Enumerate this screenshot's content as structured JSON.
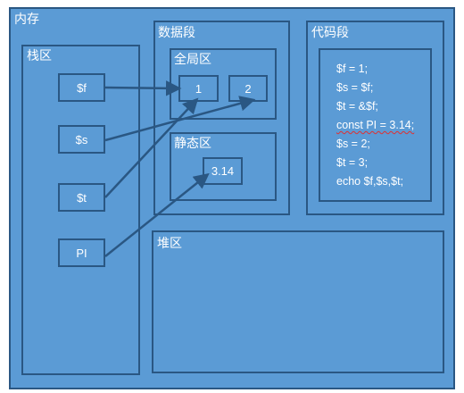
{
  "memory": {
    "title": "内存",
    "stack": {
      "title": "栈区",
      "vars": [
        "$f",
        "$s",
        "$t",
        "PI"
      ]
    },
    "data_segment": {
      "title": "数据段",
      "global": {
        "title": "全局区",
        "values": [
          "1",
          "2"
        ]
      },
      "static": {
        "title": "静态区",
        "values": [
          "3.14"
        ]
      }
    },
    "code_segment": {
      "title": "代码段",
      "lines": [
        "$f = 1;",
        "$s = $f;",
        "$t = &$f;",
        "const PI = 3.14;",
        "$s = 2;",
        "$t = 3;",
        "echo $f,$s,$t;"
      ]
    },
    "heap": {
      "title": "堆区"
    }
  },
  "references": [
    {
      "from": "$f",
      "to": "1"
    },
    {
      "from": "$s",
      "to": "2"
    },
    {
      "from": "$t",
      "to": "1"
    },
    {
      "from": "PI",
      "to": "3.14"
    }
  ],
  "colors": {
    "fill": "#5b9bd5",
    "border": "#2a5783",
    "text": "#ffffff"
  }
}
